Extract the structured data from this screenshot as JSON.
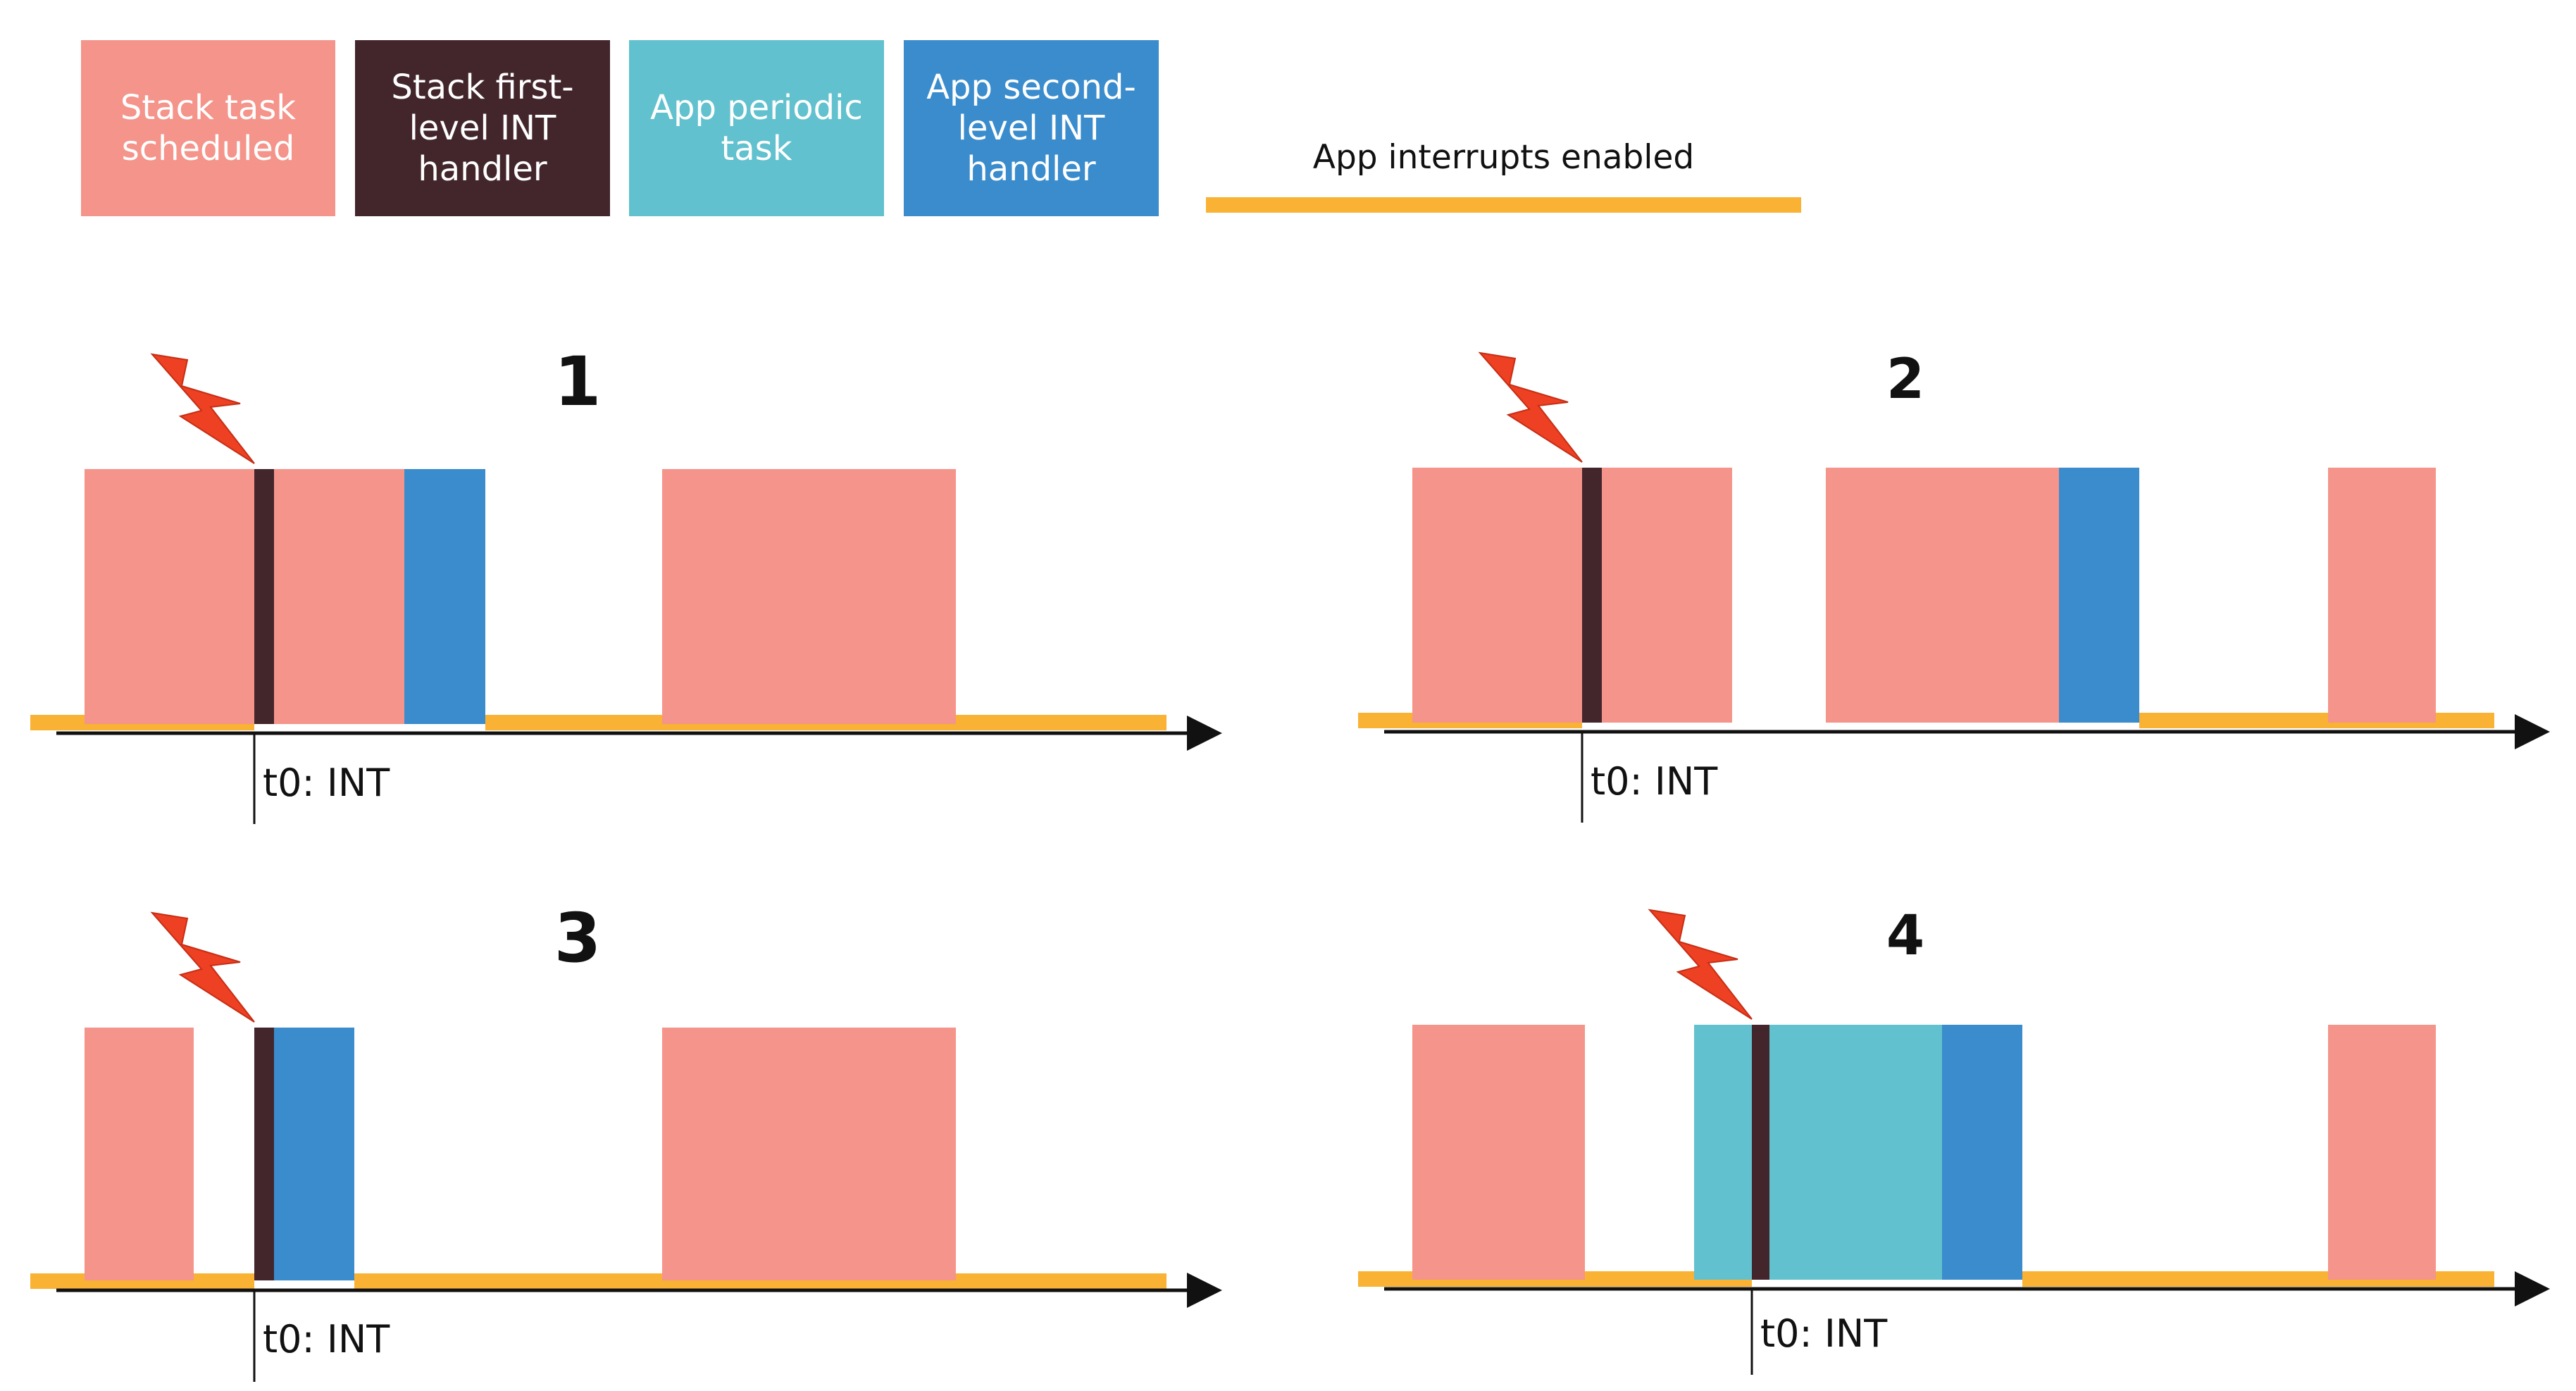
{
  "colors": {
    "stack_task": "#F4948A",
    "stack_int": "#43262C",
    "app_periodic": "#62C1CE",
    "app_int": "#3A8CCC",
    "interrupts_enabled": "#F9B233",
    "bolt": "#EE4023",
    "axis": "#111111"
  },
  "legend": {
    "stack_task": "Stack task\nscheduled",
    "stack_int": "Stack first-\nlevel INT\nhandler",
    "app_periodic": "App periodic\ntask",
    "app_int": "App second-\nlevel INT\nhandler",
    "interrupts_enabled": "App interrupts enabled"
  },
  "panels": [
    {
      "id": "1",
      "label": "1",
      "t0_label": "t0: INT",
      "blocks": [
        {
          "kind": "stack_task",
          "start": 0,
          "end": 241
        },
        {
          "kind": "stack_int",
          "start": 241,
          "end": 269
        },
        {
          "kind": "stack_task",
          "start": 269,
          "end": 454
        },
        {
          "kind": "app_int",
          "start": 454,
          "end": 569
        },
        {
          "kind": "stack_task",
          "start": 820,
          "end": 1237
        }
      ],
      "irq_enabled": [
        {
          "start": -77,
          "end": 241
        },
        {
          "start": 569,
          "end": 1536
        }
      ],
      "t0": 241
    },
    {
      "id": "2",
      "label": "2",
      "t0_label": "t0: INT",
      "blocks": [
        {
          "kind": "stack_task",
          "start": 0,
          "end": 241
        },
        {
          "kind": "stack_int",
          "start": 241,
          "end": 269
        },
        {
          "kind": "stack_task",
          "start": 269,
          "end": 454
        },
        {
          "kind": "stack_task",
          "start": 587,
          "end": 918
        },
        {
          "kind": "app_int",
          "start": 918,
          "end": 1032
        },
        {
          "kind": "stack_task",
          "start": 1300,
          "end": 1453
        }
      ],
      "irq_enabled": [
        {
          "start": -77,
          "end": 241
        },
        {
          "start": 1032,
          "end": 1536
        }
      ],
      "t0": 241
    },
    {
      "id": "3",
      "label": "3",
      "t0_label": "t0: INT",
      "blocks": [
        {
          "kind": "stack_task",
          "start": 0,
          "end": 155
        },
        {
          "kind": "stack_int",
          "start": 241,
          "end": 269
        },
        {
          "kind": "app_int",
          "start": 269,
          "end": 383
        },
        {
          "kind": "stack_task",
          "start": 820,
          "end": 1237
        }
      ],
      "irq_enabled": [
        {
          "start": -77,
          "end": 241
        },
        {
          "start": 383,
          "end": 1536
        }
      ],
      "t0": 241
    },
    {
      "id": "4",
      "label": "4",
      "t0_label": "t0: INT",
      "blocks": [
        {
          "kind": "stack_task",
          "start": 0,
          "end": 245
        },
        {
          "kind": "app_periodic",
          "start": 400,
          "end": 482
        },
        {
          "kind": "stack_int",
          "start": 482,
          "end": 507
        },
        {
          "kind": "app_periodic",
          "start": 507,
          "end": 752
        },
        {
          "kind": "app_int",
          "start": 752,
          "end": 866
        },
        {
          "kind": "stack_task",
          "start": 1300,
          "end": 1453
        }
      ],
      "irq_enabled": [
        {
          "start": -77,
          "end": 482
        },
        {
          "start": 866,
          "end": 1536
        }
      ],
      "t0": 482
    }
  ]
}
